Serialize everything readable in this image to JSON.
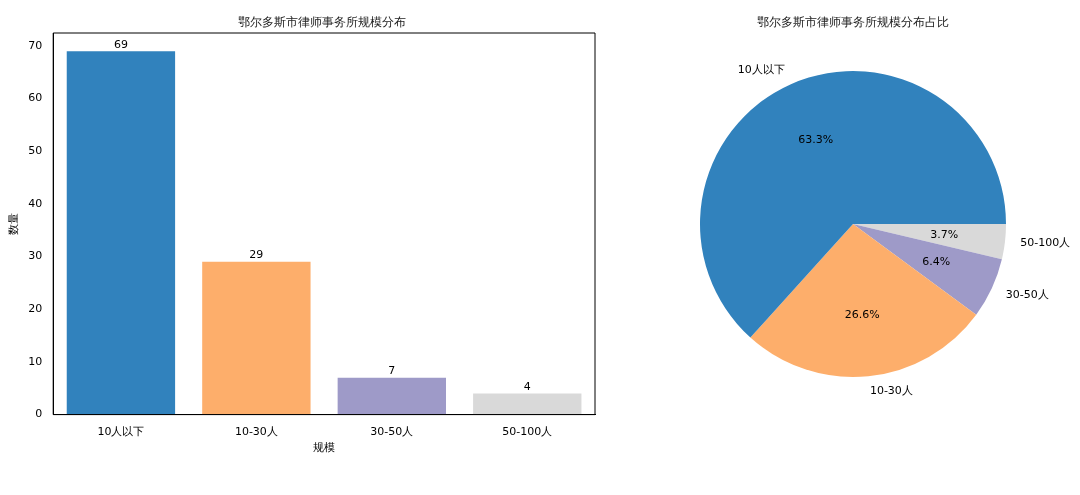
{
  "chart_data": [
    {
      "type": "bar",
      "title": "鄂尔多斯市律师事务所规模分布",
      "xlabel": "规模",
      "ylabel": "数量",
      "categories": [
        "10人以下",
        "10-30人",
        "30-50人",
        "50-100人"
      ],
      "values": [
        69,
        29,
        7,
        4
      ],
      "colors": [
        "#3182bd",
        "#fdae6b",
        "#9e9ac8",
        "#d9d9d9"
      ],
      "ylim": [
        0,
        72.45
      ],
      "yticks": [
        0,
        10,
        20,
        30,
        40,
        50,
        60,
        70
      ],
      "data_labels": true,
      "grid": false,
      "legend": false
    },
    {
      "type": "pie",
      "title": "鄂尔多斯市律师事务所规模分布占比",
      "categories": [
        "10人以下",
        "10-30人",
        "30-50人",
        "50-100人"
      ],
      "values": [
        63.3,
        26.6,
        6.4,
        3.7
      ],
      "colors": [
        "#3182bd",
        "#fdae6b",
        "#9e9ac8",
        "#d9d9d9"
      ],
      "value_labels": [
        "63.3%",
        "26.6%",
        "6.4%",
        "3.7%"
      ],
      "legend": false
    }
  ]
}
